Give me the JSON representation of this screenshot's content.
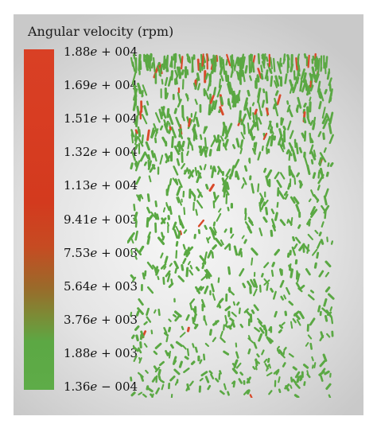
{
  "chart_data": {
    "type": "scatter",
    "title": "Angular velocity (rpm)",
    "colorbar": {
      "ticks": [
        {
          "mant": "1.88",
          "exp": " + 004"
        },
        {
          "mant": "1.69",
          "exp": " + 004"
        },
        {
          "mant": "1.51",
          "exp": " + 004"
        },
        {
          "mant": "1.32",
          "exp": " + 004"
        },
        {
          "mant": "1.13",
          "exp": " + 004"
        },
        {
          "mant": "9.41",
          "exp": " + 003"
        },
        {
          "mant": "7.53",
          "exp": " + 003"
        },
        {
          "mant": "5.64",
          "exp": " + 003"
        },
        {
          "mant": "3.76",
          "exp": " + 003"
        },
        {
          "mant": "1.88",
          "exp": " + 003"
        },
        {
          "mant": "1.36",
          "exp": " − 004"
        }
      ],
      "low_color": "#5eac48",
      "high_color": "#d94025"
    },
    "particle_colors": {
      "low": "#5aa843",
      "high": "#d84a2a"
    },
    "background": "#e6e6e6"
  }
}
